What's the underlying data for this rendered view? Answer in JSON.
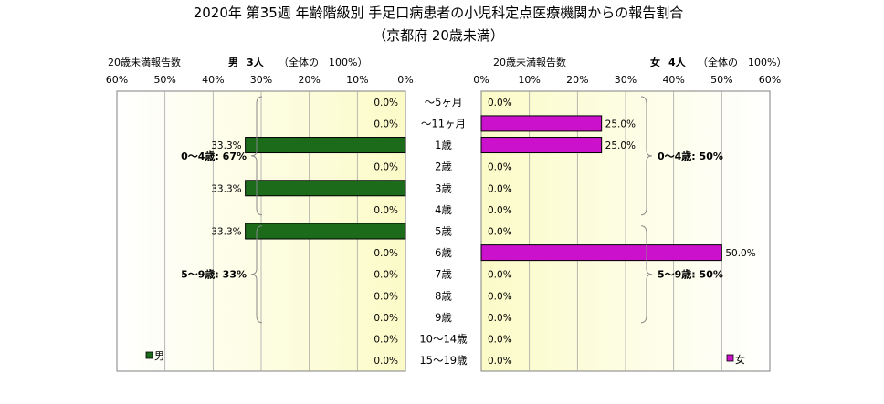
{
  "title_line1": "2020年 第35週 年齢階級別 手足口病患者の小児科定点医療機関からの報告割合",
  "title_line2": "（京都府 20歳未満）",
  "chart_data": {
    "type": "bar",
    "orientation": "horizontal",
    "unit": "%",
    "categories": [
      "～5ヶ月",
      "～11ヶ月",
      "1歳",
      "2歳",
      "3歳",
      "4歳",
      "5歳",
      "6歳",
      "7歳",
      "8歳",
      "9歳",
      "10～14歳",
      "15～19歳"
    ],
    "xlim": [
      0,
      60
    ],
    "ticks": [
      0,
      10,
      20,
      30,
      40,
      50,
      60
    ],
    "tick_labels": [
      "0%",
      "10%",
      "20%",
      "30%",
      "40%",
      "50%",
      "60%"
    ],
    "grid": true,
    "panels": [
      {
        "side": "left",
        "legend": "男",
        "color": "#1b6b1b",
        "header": {
          "label": "20歳未満報告数",
          "sex": "男",
          "count": "3人",
          "total": "（全体の　100%）"
        },
        "values": [
          0.0,
          0.0,
          33.3,
          0.0,
          33.3,
          0.0,
          33.3,
          0.0,
          0.0,
          0.0,
          0.0,
          0.0,
          0.0
        ],
        "value_labels": [
          "0.0%",
          "0.0%",
          "33.3%",
          "0.0%",
          "33.3%",
          "0.0%",
          "33.3%",
          "0.0%",
          "0.0%",
          "0.0%",
          "0.0%",
          "0.0%",
          "0.0%"
        ],
        "groups": [
          {
            "label": "0～4歳: 67%",
            "from": 0,
            "to": 5
          },
          {
            "label": "5～9歳: 33%",
            "from": 6,
            "to": 10
          }
        ]
      },
      {
        "side": "right",
        "legend": "女",
        "color": "#cc11cc",
        "header": {
          "label": "20歳未満報告数",
          "sex": "女",
          "count": "4人",
          "total": "（全体の　100%）"
        },
        "values": [
          0.0,
          25.0,
          25.0,
          0.0,
          0.0,
          0.0,
          0.0,
          50.0,
          0.0,
          0.0,
          0.0,
          0.0,
          0.0
        ],
        "value_labels": [
          "0.0%",
          "25.0%",
          "25.0%",
          "0.0%",
          "0.0%",
          "0.0%",
          "0.0%",
          "50.0%",
          "0.0%",
          "0.0%",
          "0.0%",
          "0.0%",
          "0.0%"
        ],
        "groups": [
          {
            "label": "0～4歳: 50%",
            "from": 0,
            "to": 5
          },
          {
            "label": "5～9歳: 50%",
            "from": 6,
            "to": 10
          }
        ]
      }
    ]
  }
}
